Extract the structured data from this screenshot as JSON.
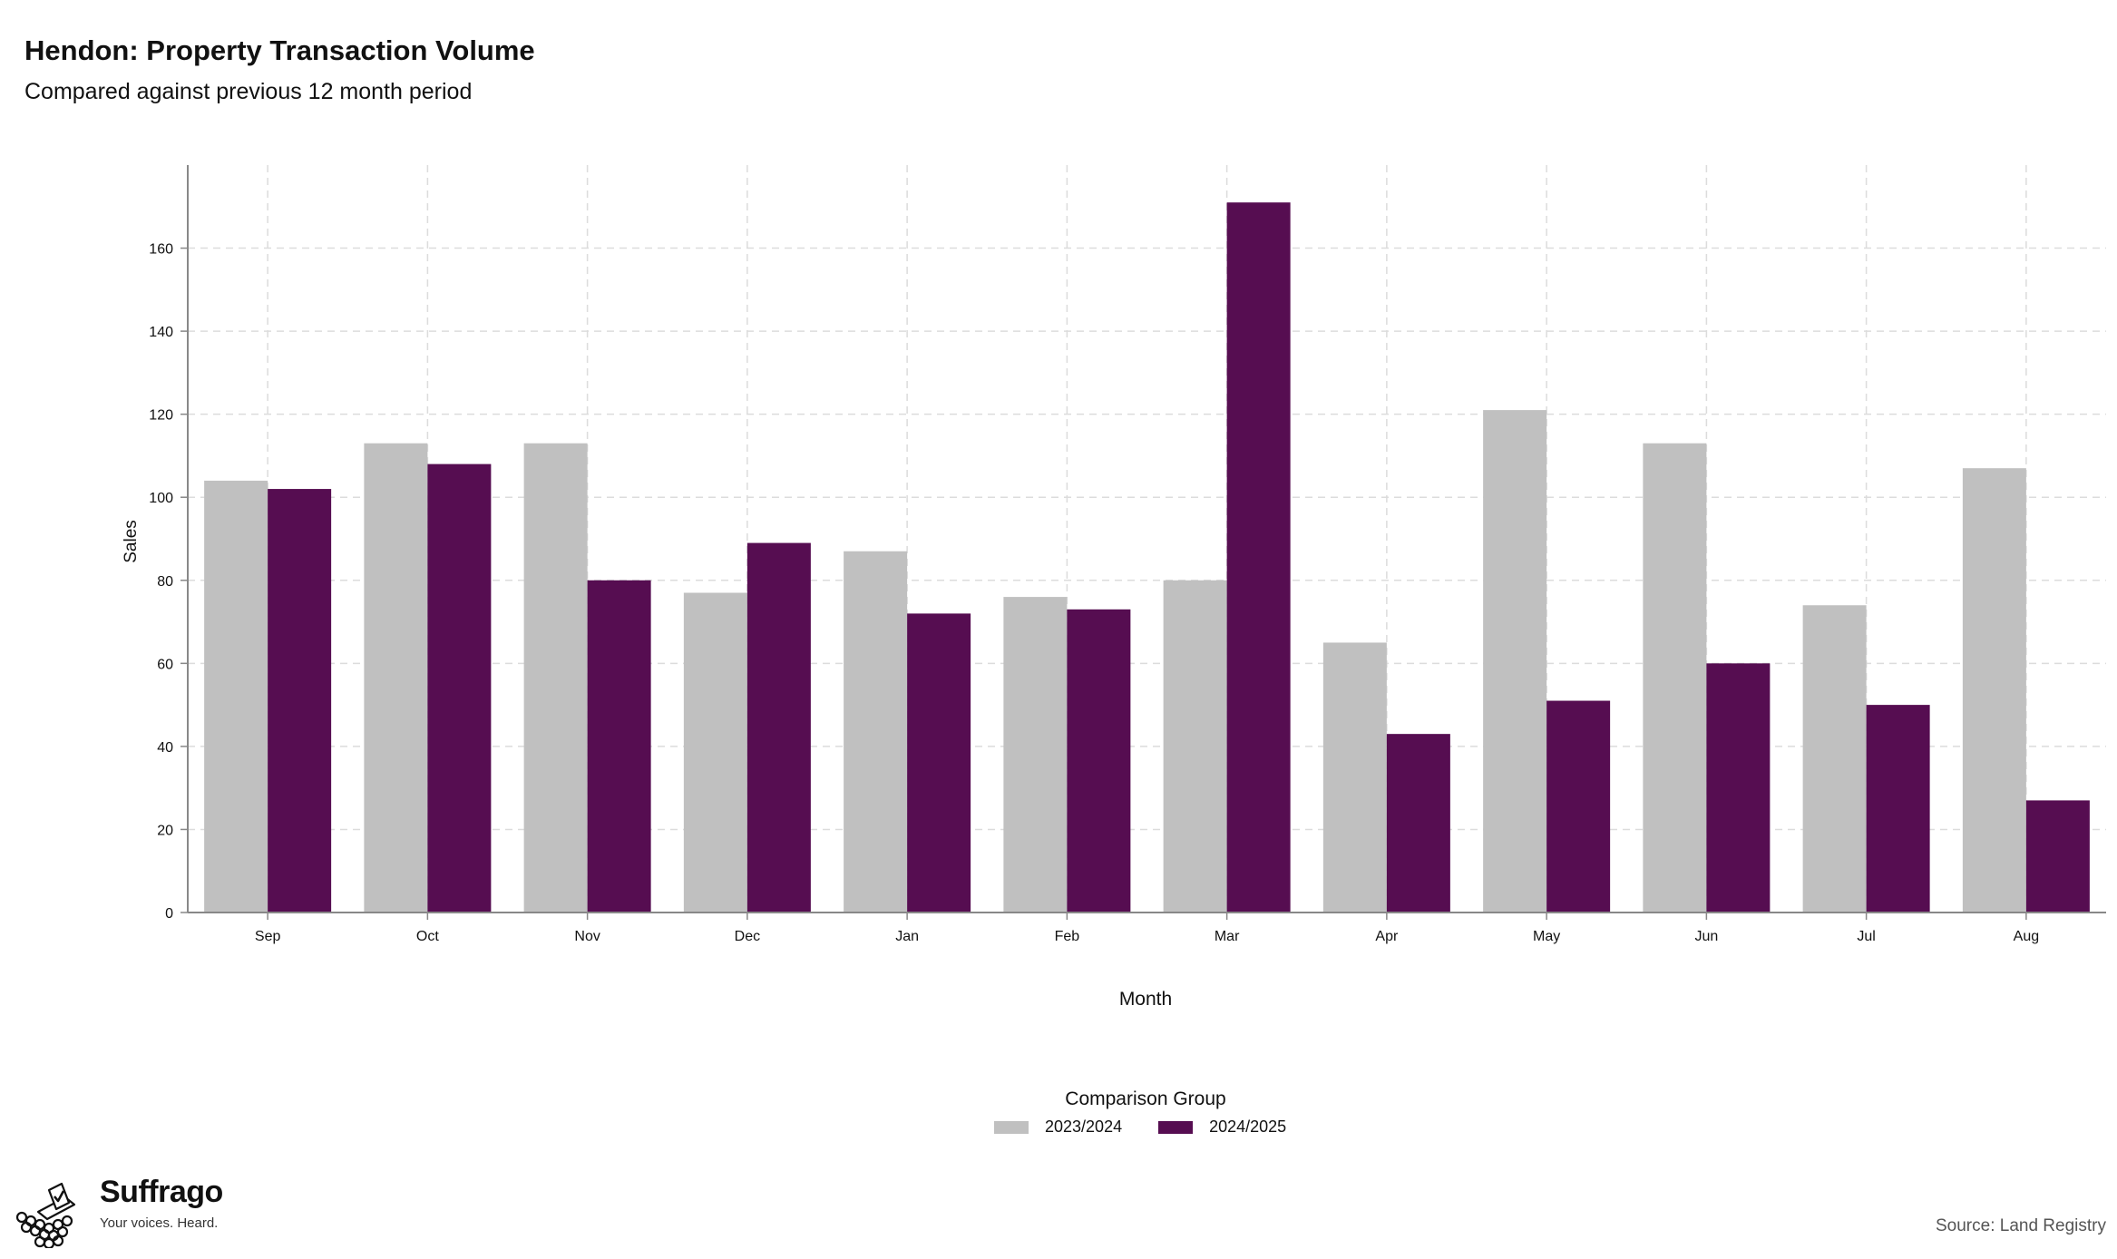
{
  "header": {
    "title": "Hendon: Property Transaction Volume",
    "subtitle": "Compared against previous 12 month period"
  },
  "chart_data": {
    "type": "bar",
    "categories": [
      "Sep",
      "Oct",
      "Nov",
      "Dec",
      "Jan",
      "Feb",
      "Mar",
      "Apr",
      "May",
      "Jun",
      "Jul",
      "Aug"
    ],
    "series": [
      {
        "name": "2023/2024",
        "color": "#c0c0c0",
        "values": [
          104,
          113,
          113,
          77,
          87,
          76,
          80,
          65,
          121,
          113,
          74,
          107
        ]
      },
      {
        "name": "2024/2025",
        "color": "#560d51",
        "values": [
          102,
          108,
          80,
          89,
          72,
          73,
          171,
          43,
          51,
          60,
          50,
          27
        ]
      }
    ],
    "xlabel": "Month",
    "ylabel": "Sales",
    "ylim": [
      0,
      180
    ],
    "yticks": [
      0,
      20,
      40,
      60,
      80,
      100,
      120,
      140,
      160
    ],
    "grid": true,
    "legend_title": "Comparison Group",
    "legend_position": "bottom"
  },
  "branding": {
    "name": "Suffrago",
    "tagline": "Your voices. Heard.",
    "source": "Source: Land Registry"
  }
}
